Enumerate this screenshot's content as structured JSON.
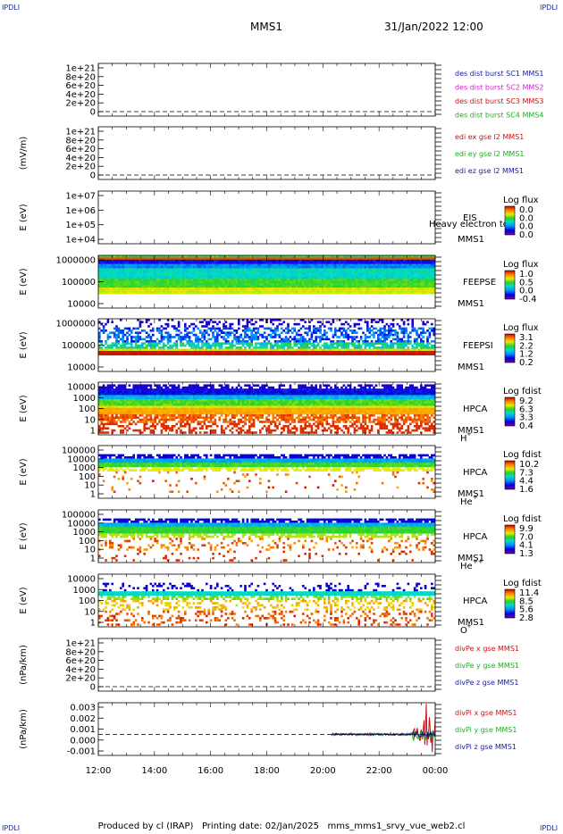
{
  "header": {
    "spacecraft": "MMS1",
    "datetime": "31/Jan/2022 12:00"
  },
  "corners": {
    "tl": "IPDLI",
    "tr": "IPDLI",
    "bl": "IPDLI",
    "br": "IPDLI"
  },
  "footer": {
    "text": "Produced by cl (IRAP)   Printing date: 02/Jan/2025   mms_mms1_srvy_vue_web2.cl"
  },
  "chart_data": {
    "type": "heatmap",
    "x": {
      "ticks": [
        "12:00",
        "14:00",
        "16:00",
        "18:00",
        "20:00",
        "22:00",
        "00:00"
      ],
      "range": [
        "12:00",
        "00:00"
      ]
    },
    "panels": [
      {
        "id": "dist",
        "kind": "empty-line",
        "ylabel": "",
        "yticks": [
          "1e+21",
          "8e+20",
          "6e+20",
          "4e+20",
          "2e+20",
          "0"
        ],
        "legend": [
          {
            "text": "des dist burst SC1 MMS1",
            "color": "#1a1aa6"
          },
          {
            "text": "des dist burst SC2 MMS2",
            "color": "#cc22cc"
          },
          {
            "text": "des dist burst SC3 MMS3",
            "color": "#cc1111"
          },
          {
            "text": "des dist burst SC4 MMS4",
            "color": "#22aa22"
          }
        ]
      },
      {
        "id": "edi",
        "kind": "empty-line",
        "ylabel": "(mV/m)",
        "yticks": [
          "1e+21",
          "8e+20",
          "6e+20",
          "4e+20",
          "2e+20",
          "0"
        ],
        "legend": [
          {
            "text": "edi ex gse l2 MMS1",
            "color": "#cc1111"
          },
          {
            "text": "edi ey gse l2 MMS1",
            "color": "#22aa22"
          },
          {
            "text": "edi ez gse l2 MMS1",
            "color": "#1a1aa6"
          }
        ]
      },
      {
        "id": "eis",
        "kind": "empty-spec",
        "ylabel": "E (eV)",
        "yticks": [
          "1e+07",
          "1e+06",
          "1e+05",
          "1e+04"
        ],
        "labels": [
          "EIS",
          "MMS1"
        ],
        "overlay": "Heavy electron to",
        "cbar": {
          "title": "Log flux",
          "ticks": [
            "0.0",
            "0.0",
            "0.0",
            "0.0"
          ]
        }
      },
      {
        "id": "feepse",
        "kind": "spec",
        "ylabel": "E (eV)",
        "yticks": [
          "1000000",
          "100000",
          "10000"
        ],
        "labels": [
          "FEEPSE",
          "MMS1"
        ],
        "cbar": {
          "title": "Log flux",
          "ticks": [
            "1.0",
            "0.5",
            "0.0",
            "-0.4"
          ]
        }
      },
      {
        "id": "feepsi",
        "kind": "spec",
        "ylabel": "E (eV)",
        "yticks": [
          "1000000",
          "100000",
          "10000"
        ],
        "labels": [
          "FEEPSI",
          "MMS1"
        ],
        "cbar": {
          "title": "Log flux",
          "ticks": [
            "3.1",
            "2.2",
            "1.2",
            "0.2"
          ]
        }
      },
      {
        "id": "hpca_h",
        "kind": "spec",
        "ylabel": "E (eV)",
        "yticks": [
          "10000",
          "1000",
          "100",
          "10",
          "1"
        ],
        "labels": [
          "HPCA",
          "MMS1"
        ],
        "species": "H",
        "sup": "+",
        "cbar": {
          "title": "Log fdist",
          "ticks": [
            "9.2",
            "6.3",
            "3.3",
            "0.4"
          ]
        }
      },
      {
        "id": "hpca_he",
        "kind": "spec",
        "ylabel": "E (eV)",
        "yticks": [
          "100000",
          "10000",
          "1000",
          "100",
          "10",
          "1"
        ],
        "labels": [
          "HPCA",
          "MMS1"
        ],
        "species": "He",
        "sup": "+",
        "cbar": {
          "title": "Log fdist",
          "ticks": [
            "10.2",
            "7.3",
            "4.4",
            "1.6"
          ]
        }
      },
      {
        "id": "hpca_hepp",
        "kind": "spec",
        "ylabel": "E (eV)",
        "yticks": [
          "100000",
          "10000",
          "1000",
          "100",
          "10",
          "1"
        ],
        "labels": [
          "HPCA",
          "MMS1"
        ],
        "species": "He",
        "sup": "++",
        "cbar": {
          "title": "Log fdist",
          "ticks": [
            "9.9",
            "7.0",
            "4.1",
            "1.3"
          ]
        }
      },
      {
        "id": "hpca_o",
        "kind": "spec",
        "ylabel": "E (eV)",
        "yticks": [
          "10000",
          "1000",
          "100",
          "10",
          "1"
        ],
        "labels": [
          "HPCA",
          "MMS1"
        ],
        "species": "O",
        "sup": "+",
        "cbar": {
          "title": "Log fdist",
          "ticks": [
            "11.4",
            "8.5",
            "5.6",
            "2.8"
          ]
        }
      },
      {
        "id": "divpe",
        "kind": "empty-line",
        "ylabel": "(nPa/km)",
        "yticks": [
          "1e+21",
          "8e+20",
          "6e+20",
          "4e+20",
          "2e+20",
          "0"
        ],
        "legend": [
          {
            "text": "divPe x gse MMS1",
            "color": "#cc1111"
          },
          {
            "text": "divPe y gse MMS1",
            "color": "#22aa22"
          },
          {
            "text": "divPe z gse MMS1",
            "color": "#1a1aa6"
          }
        ]
      },
      {
        "id": "divpi",
        "kind": "line",
        "ylabel": "(nPa/km)",
        "yticks": [
          "0.003",
          "0.002",
          "0.001",
          "0.000",
          "-0.001"
        ],
        "yrange": [
          -0.002,
          0.003
        ],
        "data_start_hour": 20.3,
        "legend": [
          {
            "text": "divPi x gse MMS1",
            "color": "#cc1111"
          },
          {
            "text": "divPi y gse MMS1",
            "color": "#22aa22"
          },
          {
            "text": "divPi z gse MMS1",
            "color": "#1a1aa6"
          }
        ]
      }
    ]
  }
}
